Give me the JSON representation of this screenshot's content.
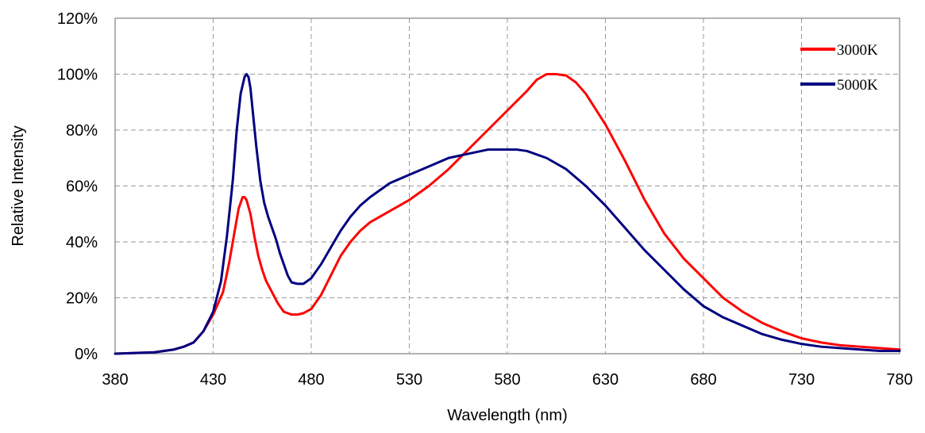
{
  "chart_data": {
    "type": "line",
    "title": "",
    "xlabel": "Wavelength (nm)",
    "ylabel": "Relative Intensity",
    "xlim": [
      380,
      780
    ],
    "ylim": [
      0,
      120
    ],
    "x_ticks": [
      380,
      430,
      480,
      530,
      580,
      630,
      680,
      730,
      780
    ],
    "x_tick_labels": [
      "380",
      "430",
      "480",
      "530",
      "580",
      "630",
      "680",
      "730",
      "780"
    ],
    "y_ticks": [
      0,
      20,
      40,
      60,
      80,
      100,
      120
    ],
    "y_tick_labels": [
      "0%",
      "20%",
      "40%",
      "60%",
      "80%",
      "100%",
      "120%"
    ],
    "grid": true,
    "legend_position": "top-right",
    "series": [
      {
        "name": "3000K",
        "color": "#ff0000",
        "x": [
          380,
          400,
          410,
          415,
          420,
          425,
          430,
          435,
          438,
          441,
          443,
          445,
          446,
          447,
          449,
          451,
          453,
          455,
          457,
          460,
          463,
          466,
          470,
          473,
          476,
          480,
          485,
          490,
          495,
          500,
          505,
          510,
          520,
          530,
          540,
          550,
          560,
          570,
          580,
          590,
          595,
          600,
          605,
          610,
          615,
          620,
          630,
          640,
          650,
          660,
          670,
          680,
          690,
          700,
          710,
          720,
          730,
          740,
          750,
          760,
          770,
          780
        ],
        "y": [
          0,
          0.5,
          1.5,
          2.5,
          4,
          8,
          14,
          22,
          32,
          44,
          52,
          56,
          56,
          55,
          50,
          42,
          35,
          30,
          26,
          22,
          18,
          15,
          14,
          14,
          14.5,
          16,
          21,
          28,
          35,
          40,
          44,
          47,
          51,
          55,
          60,
          66,
          73,
          80,
          87,
          94,
          98,
          100,
          100,
          99.5,
          97,
          93,
          82,
          69,
          55,
          43,
          34,
          27,
          20,
          15,
          11,
          8,
          5.5,
          4,
          3,
          2.5,
          2,
          1.5
        ]
      },
      {
        "name": "5000K",
        "color": "#000080",
        "x": [
          380,
          400,
          410,
          415,
          420,
          425,
          430,
          434,
          437,
          440,
          442,
          444,
          446,
          447,
          448,
          449,
          450,
          452,
          454,
          456,
          458,
          460,
          462,
          464,
          466,
          468,
          470,
          473,
          476,
          480,
          485,
          490,
          495,
          500,
          505,
          510,
          520,
          530,
          540,
          550,
          560,
          570,
          580,
          585,
          590,
          600,
          610,
          620,
          630,
          640,
          650,
          660,
          670,
          680,
          690,
          700,
          710,
          720,
          730,
          740,
          750,
          760,
          770,
          780
        ],
        "y": [
          0,
          0.5,
          1.5,
          2.5,
          4,
          8,
          15,
          26,
          42,
          62,
          80,
          93,
          99,
          100,
          99,
          95,
          88,
          74,
          62,
          54,
          49,
          45,
          41,
          36,
          32,
          28,
          25.5,
          25,
          25,
          27,
          32,
          38,
          44,
          49,
          53,
          56,
          61,
          64,
          67,
          70,
          71.5,
          73,
          73,
          73,
          72.5,
          70,
          66,
          60,
          53,
          45,
          37,
          30,
          23,
          17,
          13,
          10,
          7,
          5,
          3.5,
          2.5,
          2,
          1.5,
          1,
          1
        ]
      }
    ]
  }
}
